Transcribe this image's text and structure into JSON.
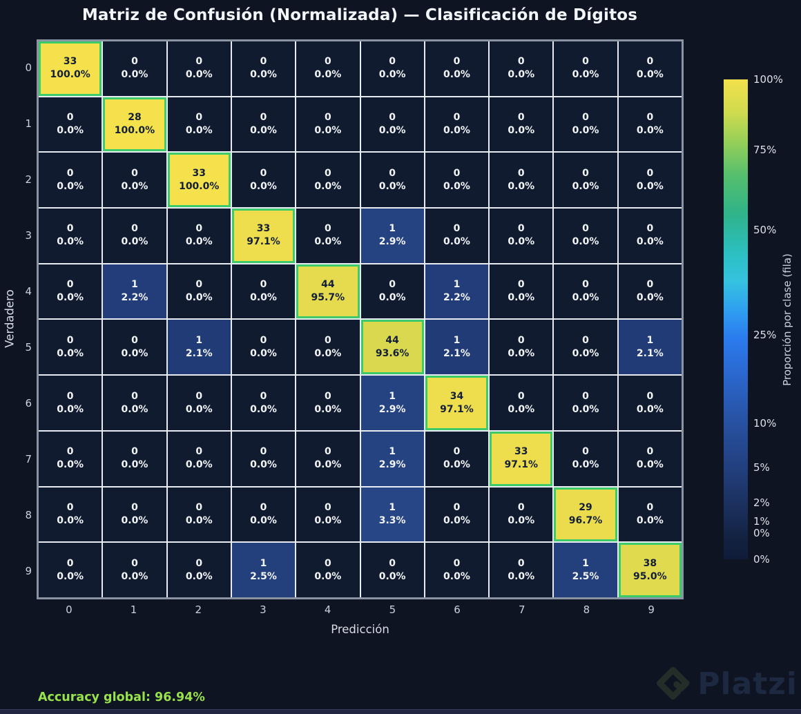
{
  "title": "Matriz de Confusión (Normalizada) — Clasificación de Dígitos",
  "chart_data": {
    "type": "heatmap",
    "title": "Matriz de Confusión (Normalizada) — Clasificación de Dígitos",
    "xlabel": "Predicción",
    "ylabel": "Verdadero",
    "x_ticklabels": [
      "0",
      "1",
      "2",
      "3",
      "4",
      "5",
      "6",
      "7",
      "8",
      "9"
    ],
    "y_ticklabels": [
      "0",
      "1",
      "2",
      "3",
      "4",
      "5",
      "6",
      "7",
      "8",
      "9"
    ],
    "counts": [
      [
        33,
        0,
        0,
        0,
        0,
        0,
        0,
        0,
        0,
        0
      ],
      [
        0,
        28,
        0,
        0,
        0,
        0,
        0,
        0,
        0,
        0
      ],
      [
        0,
        0,
        33,
        0,
        0,
        0,
        0,
        0,
        0,
        0
      ],
      [
        0,
        0,
        0,
        33,
        0,
        1,
        0,
        0,
        0,
        0
      ],
      [
        0,
        1,
        0,
        0,
        44,
        0,
        1,
        0,
        0,
        0
      ],
      [
        0,
        0,
        1,
        0,
        0,
        44,
        1,
        0,
        0,
        1
      ],
      [
        0,
        0,
        0,
        0,
        0,
        1,
        34,
        0,
        0,
        0
      ],
      [
        0,
        0,
        0,
        0,
        0,
        1,
        0,
        33,
        0,
        0
      ],
      [
        0,
        0,
        0,
        0,
        0,
        1,
        0,
        0,
        29,
        0
      ],
      [
        0,
        0,
        0,
        1,
        0,
        0,
        0,
        0,
        1,
        38
      ]
    ],
    "row_percents": [
      [
        100,
        0,
        0,
        0,
        0,
        0,
        0,
        0,
        0,
        0
      ],
      [
        0,
        100,
        0,
        0,
        0,
        0,
        0,
        0,
        0,
        0
      ],
      [
        0,
        0,
        100,
        0,
        0,
        0,
        0,
        0,
        0,
        0
      ],
      [
        0,
        0,
        0,
        97.1,
        0,
        2.9,
        0,
        0,
        0,
        0
      ],
      [
        0,
        2.2,
        0,
        0,
        95.7,
        0,
        2.2,
        0,
        0,
        0
      ],
      [
        0,
        0,
        2.1,
        0,
        0,
        93.6,
        2.1,
        0,
        0,
        2.1
      ],
      [
        0,
        0,
        0,
        0,
        0,
        2.9,
        97.1,
        0,
        0,
        0
      ],
      [
        0,
        0,
        0,
        0,
        0,
        2.9,
        0,
        97.1,
        0,
        0
      ],
      [
        0,
        0,
        0,
        0,
        0,
        3.3,
        0,
        0,
        96.7,
        0
      ],
      [
        0,
        0,
        0,
        2.5,
        0,
        0,
        0,
        0,
        2.5,
        95
      ]
    ],
    "value_colors": {
      "0": "#101b30",
      "2.1": "#213b76",
      "2.2": "#223d79",
      "2.5": "#233f7c",
      "2.9": "#254281",
      "3.3": "#274686",
      "93.6": "#d9d84e",
      "95": "#e0da4e",
      "95.7": "#e6db4e",
      "96.7": "#ebdc4d",
      "97.1": "#eedd4d",
      "100": "#f4e14b"
    },
    "text_colors": {
      "on_dark": "#f3f5f8",
      "on_light": "#131f38"
    },
    "diag_border_color": "#3ccb68",
    "grid_on": true,
    "legend_position": "right",
    "colorbar": {
      "label": "Proporción por clase (fila)",
      "ticks": [
        {
          "label": "100%",
          "pos": 0.0
        },
        {
          "label": "75%",
          "pos": 0.147
        },
        {
          "label": "50%",
          "pos": 0.314
        },
        {
          "label": "25%",
          "pos": 0.532
        },
        {
          "label": "10%",
          "pos": 0.717
        },
        {
          "label": "5%",
          "pos": 0.808
        },
        {
          "label": "2%",
          "pos": 0.882
        },
        {
          "label": "1%",
          "pos": 0.921
        },
        {
          "label": "0%",
          "pos": 0.945
        },
        {
          "label": "0%",
          "pos": 1.0
        }
      ]
    }
  },
  "footer": {
    "accuracy_text": "Accuracy global: 96.94%",
    "accuracy_color": "#98e34b"
  },
  "watermark": {
    "brand": "Platzi"
  }
}
